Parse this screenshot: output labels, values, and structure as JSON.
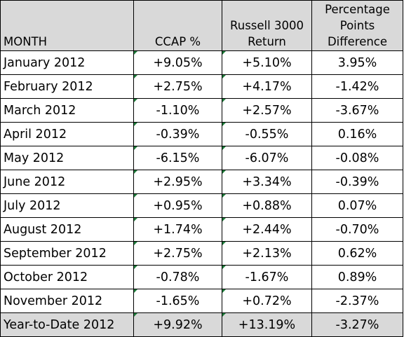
{
  "headers": {
    "month": "MONTH",
    "ccap": "CCAP %",
    "russell_line1": "Russell 3000",
    "russell_line2": "Return",
    "diff_line1": "Percentage",
    "diff_line2": "Points",
    "diff_line3": "Difference"
  },
  "rows": [
    {
      "month": "January 2012",
      "ccap": "+9.05%",
      "russell": "+5.10%",
      "diff": "3.95%"
    },
    {
      "month": "February 2012",
      "ccap": "+2.75%",
      "russell": "+4.17%",
      "diff": "-1.42%"
    },
    {
      "month": "March 2012",
      "ccap": "-1.10%",
      "russell": "+2.57%",
      "diff": "-3.67%"
    },
    {
      "month": "April 2012",
      "ccap": "-0.39%",
      "russell": "-0.55%",
      "diff": "0.16%"
    },
    {
      "month": "May 2012",
      "ccap": "-6.15%",
      "russell": "-6.07%",
      "diff": "-0.08%"
    },
    {
      "month": "June 2012",
      "ccap": "+2.95%",
      "russell": "+3.34%",
      "diff": "-0.39%"
    },
    {
      "month": "July 2012",
      "ccap": "+0.95%",
      "russell": "+0.88%",
      "diff": "0.07%"
    },
    {
      "month": "August 2012",
      "ccap": "+1.74%",
      "russell": "+2.44%",
      "diff": "-0.70%"
    },
    {
      "month": "September 2012",
      "ccap": "+2.75%",
      "russell": "+2.13%",
      "diff": "0.62%"
    },
    {
      "month": "October 2012",
      "ccap": "-0.78%",
      "russell": "-1.67%",
      "diff": "0.89%"
    },
    {
      "month": "November 2012",
      "ccap": "-1.65%",
      "russell": "+0.72%",
      "diff": "-2.37%"
    }
  ],
  "total": {
    "month": "Year-to-Date 2012",
    "ccap": "+9.92%",
    "russell": "+13.19%",
    "diff": "-3.27%"
  },
  "colors": {
    "header_background": "#d9d9d9",
    "total_background": "#d9d9d9",
    "grid_lines": "#000000",
    "error_indicator": "#1e7c3a"
  }
}
